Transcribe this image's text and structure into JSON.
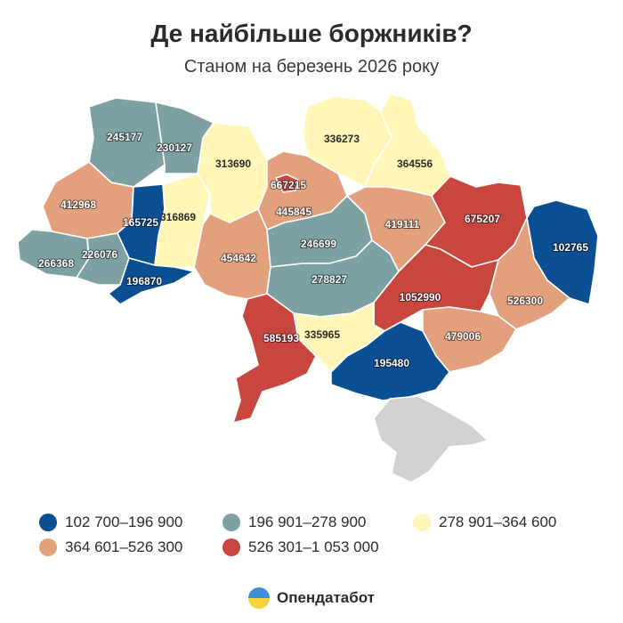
{
  "title": "Де найбільше боржників?",
  "subtitle": "Станом на березень 2026 року",
  "colors": {
    "c1": "#0a4f92",
    "c2": "#7da1a3",
    "c3": "#fff6b8",
    "c4": "#e2a07c",
    "c5": "#c8463e",
    "nodata": "#d2d2d2"
  },
  "legend": [
    {
      "label": "102 700–196 900",
      "class": "c1"
    },
    {
      "label": "196 901–278 900",
      "class": "c2"
    },
    {
      "label": "278 901–364 600",
      "class": "c3"
    },
    {
      "label": "364 601–526 300",
      "class": "c4"
    },
    {
      "label": "526 301–1 053 000",
      "class": "c5"
    }
  ],
  "regions": [
    {
      "id": "volyn",
      "value": "245177",
      "class": "c2"
    },
    {
      "id": "rivne",
      "value": "230127",
      "class": "c2"
    },
    {
      "id": "zhytomyr",
      "value": "313690",
      "class": "c3"
    },
    {
      "id": "kyiv-city",
      "value": "667215",
      "class": "c5"
    },
    {
      "id": "kyiv-oblast",
      "value": "445845",
      "class": "c4"
    },
    {
      "id": "chernihiv",
      "value": "336273",
      "class": "c3"
    },
    {
      "id": "sumy",
      "value": "364556",
      "class": "c3"
    },
    {
      "id": "lviv",
      "value": "412968",
      "class": "c4"
    },
    {
      "id": "ternopil",
      "value": "165725",
      "class": "c1"
    },
    {
      "id": "khmelnytskyi",
      "value": "316869",
      "class": "c3"
    },
    {
      "id": "poltava",
      "value": "419111",
      "class": "c4"
    },
    {
      "id": "kharkiv",
      "value": "675207",
      "class": "c5"
    },
    {
      "id": "luhansk",
      "value": "102765",
      "class": "c1"
    },
    {
      "id": "zakarpattia",
      "value": "266368",
      "class": "c2"
    },
    {
      "id": "ivano-frankivsk",
      "value": "226076",
      "class": "c2"
    },
    {
      "id": "chernivtsi",
      "value": "196870",
      "class": "c1"
    },
    {
      "id": "vinnytsia",
      "value": "454642",
      "class": "c4"
    },
    {
      "id": "cherkasy",
      "value": "246699",
      "class": "c2"
    },
    {
      "id": "kirovohrad",
      "value": "278827",
      "class": "c2"
    },
    {
      "id": "dnipropetrovsk",
      "value": "1052990",
      "class": "c5"
    },
    {
      "id": "donetsk",
      "value": "526300",
      "class": "c4"
    },
    {
      "id": "zaporizhzhia",
      "value": "479006",
      "class": "c4"
    },
    {
      "id": "odesa",
      "value": "585193",
      "class": "c5"
    },
    {
      "id": "mykolaiv",
      "value": "335965",
      "class": "c3"
    },
    {
      "id": "kherson",
      "value": "195480",
      "class": "c1"
    },
    {
      "id": "crimea",
      "value": "",
      "class": "nodata"
    }
  ],
  "brand": "Опендатабот"
}
